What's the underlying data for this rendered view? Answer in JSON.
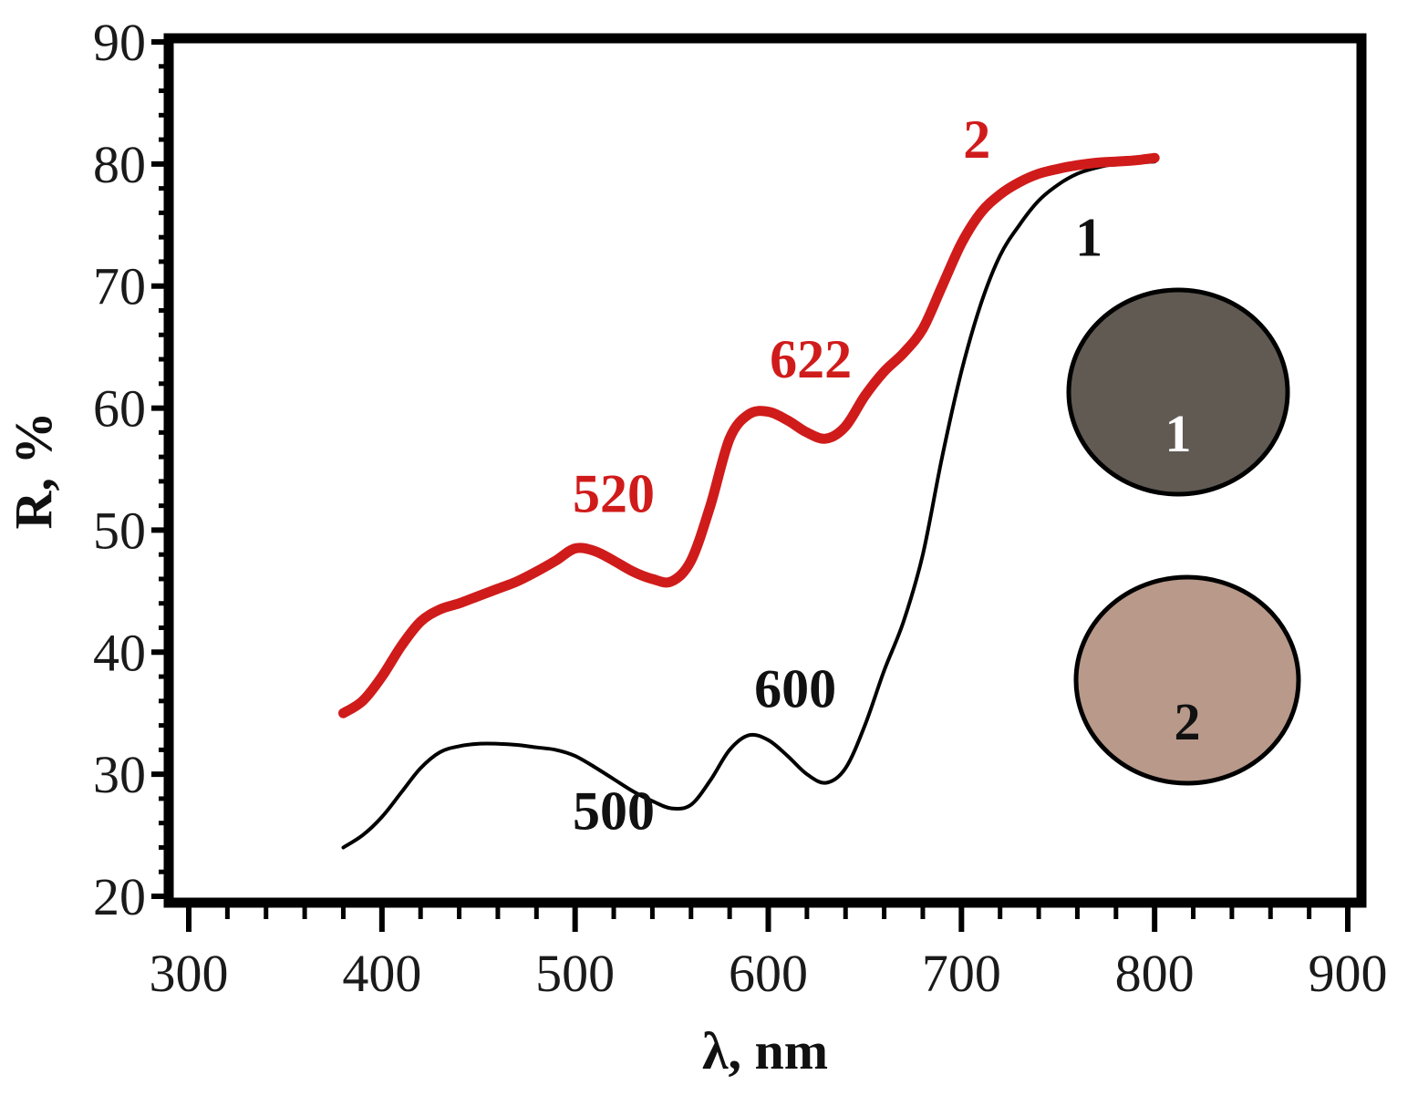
{
  "chart_data": {
    "type": "line",
    "xlabel": "λ, nm",
    "ylabel": "R, %",
    "xlim": [
      300,
      900
    ],
    "ylim": [
      20,
      90
    ],
    "xticks": [
      300,
      400,
      500,
      600,
      700,
      800,
      900
    ],
    "yticks": [
      20,
      30,
      40,
      50,
      60,
      70,
      80,
      90
    ],
    "grid": false,
    "legend": "none",
    "series": [
      {
        "name": "1",
        "color": "#000000",
        "x": [
          380,
          390,
          400,
          410,
          420,
          430,
          440,
          450,
          460,
          470,
          480,
          490,
          500,
          510,
          520,
          530,
          540,
          550,
          560,
          570,
          580,
          590,
          600,
          610,
          620,
          630,
          640,
          650,
          660,
          670,
          680,
          690,
          700,
          710,
          720,
          730,
          740,
          750,
          760,
          770,
          780,
          790,
          800
        ],
        "y": [
          24.0,
          25.0,
          26.5,
          28.5,
          30.5,
          31.8,
          32.3,
          32.5,
          32.5,
          32.4,
          32.2,
          32.0,
          31.5,
          30.6,
          29.6,
          28.6,
          27.8,
          27.2,
          27.5,
          29.5,
          32.0,
          33.2,
          32.8,
          31.5,
          30.0,
          29.3,
          30.5,
          34.0,
          38.5,
          42.5,
          48.0,
          56.0,
          63.0,
          68.5,
          72.5,
          75.0,
          77.0,
          78.3,
          79.2,
          79.7,
          80.0,
          80.1,
          80.2
        ]
      },
      {
        "name": "2",
        "color": "#d01b1b",
        "x": [
          380,
          390,
          400,
          410,
          420,
          430,
          440,
          450,
          460,
          470,
          480,
          490,
          500,
          510,
          520,
          530,
          540,
          550,
          560,
          570,
          580,
          590,
          600,
          610,
          620,
          630,
          640,
          650,
          660,
          670,
          680,
          690,
          700,
          710,
          720,
          730,
          740,
          750,
          760,
          770,
          780,
          790,
          800
        ],
        "y": [
          35.0,
          36.0,
          38.0,
          40.5,
          42.5,
          43.5,
          44.0,
          44.6,
          45.2,
          45.8,
          46.6,
          47.5,
          48.5,
          48.3,
          47.5,
          46.6,
          46.0,
          45.8,
          47.5,
          52.0,
          57.5,
          59.5,
          59.7,
          59.0,
          58.0,
          57.5,
          58.5,
          61.0,
          63.0,
          64.5,
          66.5,
          70.0,
          73.5,
          76.0,
          77.5,
          78.5,
          79.2,
          79.6,
          79.9,
          80.1,
          80.2,
          80.3,
          80.5
        ]
      }
    ],
    "annotations": [
      {
        "text": "1",
        "x": 766,
        "y": 72.5,
        "color": "#111111"
      },
      {
        "text": "2",
        "x": 708,
        "y": 80.5,
        "color": "#d01b1b"
      },
      {
        "text": "520",
        "x": 520,
        "y": 51.5,
        "color": "#d01b1b"
      },
      {
        "text": "622",
        "x": 622,
        "y": 62.5,
        "color": "#d01b1b"
      },
      {
        "text": "500",
        "x": 520,
        "y": 25.5,
        "color": "#111111"
      },
      {
        "text": "600",
        "x": 614,
        "y": 35.5,
        "color": "#111111"
      }
    ],
    "samples": [
      {
        "label": "1",
        "fill": "#615a53",
        "text_color": "#ffffff"
      },
      {
        "label": "2",
        "fill": "#b8998a",
        "text_color": "#111111"
      }
    ]
  }
}
